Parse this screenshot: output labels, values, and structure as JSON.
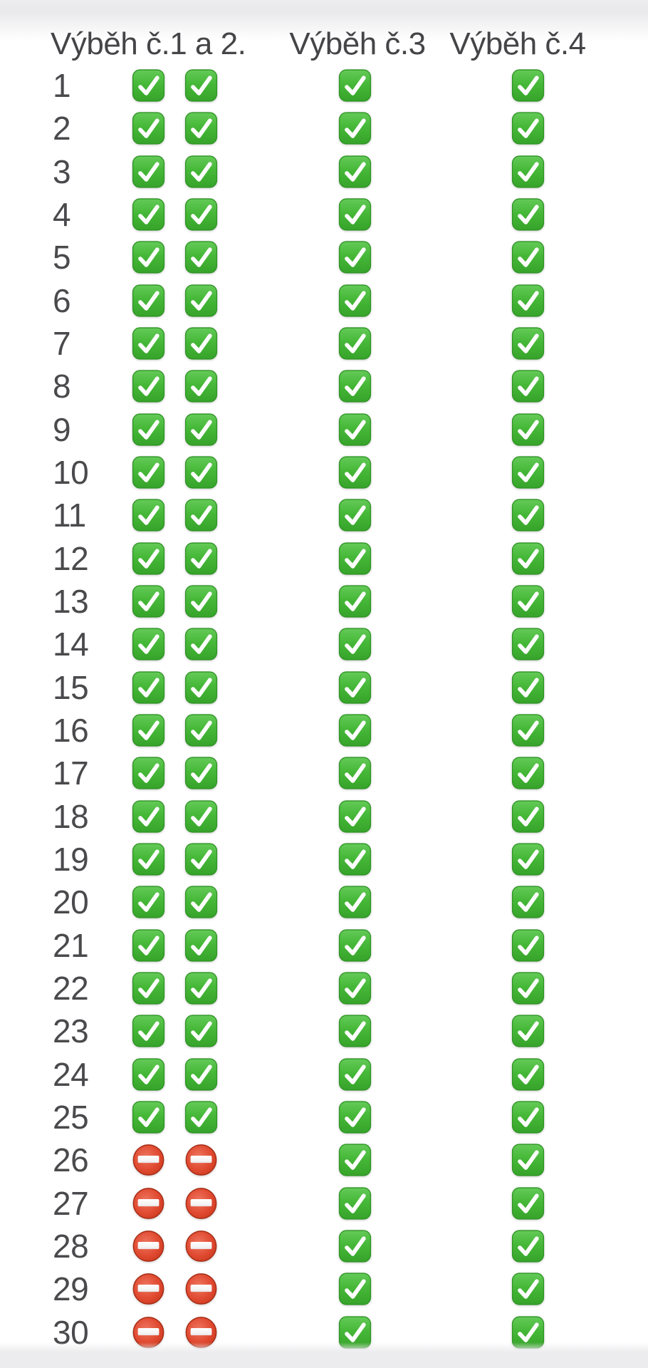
{
  "page": {
    "background": "#ffffff",
    "top_fade_color": "#e9e9eb",
    "bottom_band_color": "#ececee"
  },
  "colors": {
    "header_text": "#454548",
    "row_number_text": "#4a4a4d",
    "check_green_light": "#64ca58",
    "check_green": "#46b838",
    "check_green_dark": "#36a32a",
    "check_border": "#2e9424",
    "no_entry_red_light": "#ee7660",
    "no_entry_red": "#e04a31",
    "no_entry_red_dark": "#c43418",
    "no_entry_border": "#a82c15",
    "mark_white": "#ffffff"
  },
  "icon_legend": {
    "check": "green check mark button emoji",
    "no_entry": "red no-entry sign emoji"
  },
  "table": {
    "columns": [
      {
        "id": "pen-1-2",
        "label": "Výběh č.1 a 2."
      },
      {
        "id": "pen-3",
        "label": "Výběh č.3"
      },
      {
        "id": "pen-4",
        "label": "Výběh č.4"
      }
    ],
    "rows": [
      {
        "number": "1",
        "pen_1_2": [
          "check",
          "check"
        ],
        "pen_3": "check",
        "pen_4": "check"
      },
      {
        "number": "2",
        "pen_1_2": [
          "check",
          "check"
        ],
        "pen_3": "check",
        "pen_4": "check"
      },
      {
        "number": "3",
        "pen_1_2": [
          "check",
          "check"
        ],
        "pen_3": "check",
        "pen_4": "check"
      },
      {
        "number": "4",
        "pen_1_2": [
          "check",
          "check"
        ],
        "pen_3": "check",
        "pen_4": "check"
      },
      {
        "number": "5",
        "pen_1_2": [
          "check",
          "check"
        ],
        "pen_3": "check",
        "pen_4": "check"
      },
      {
        "number": "6",
        "pen_1_2": [
          "check",
          "check"
        ],
        "pen_3": "check",
        "pen_4": "check"
      },
      {
        "number": "7",
        "pen_1_2": [
          "check",
          "check"
        ],
        "pen_3": "check",
        "pen_4": "check"
      },
      {
        "number": "8",
        "pen_1_2": [
          "check",
          "check"
        ],
        "pen_3": "check",
        "pen_4": "check"
      },
      {
        "number": "9",
        "pen_1_2": [
          "check",
          "check"
        ],
        "pen_3": "check",
        "pen_4": "check"
      },
      {
        "number": "10",
        "pen_1_2": [
          "check",
          "check"
        ],
        "pen_3": "check",
        "pen_4": "check"
      },
      {
        "number": "11",
        "pen_1_2": [
          "check",
          "check"
        ],
        "pen_3": "check",
        "pen_4": "check"
      },
      {
        "number": "12",
        "pen_1_2": [
          "check",
          "check"
        ],
        "pen_3": "check",
        "pen_4": "check"
      },
      {
        "number": "13",
        "pen_1_2": [
          "check",
          "check"
        ],
        "pen_3": "check",
        "pen_4": "check"
      },
      {
        "number": "14",
        "pen_1_2": [
          "check",
          "check"
        ],
        "pen_3": "check",
        "pen_4": "check"
      },
      {
        "number": "15",
        "pen_1_2": [
          "check",
          "check"
        ],
        "pen_3": "check",
        "pen_4": "check"
      },
      {
        "number": "16",
        "pen_1_2": [
          "check",
          "check"
        ],
        "pen_3": "check",
        "pen_4": "check"
      },
      {
        "number": "17",
        "pen_1_2": [
          "check",
          "check"
        ],
        "pen_3": "check",
        "pen_4": "check"
      },
      {
        "number": "18",
        "pen_1_2": [
          "check",
          "check"
        ],
        "pen_3": "check",
        "pen_4": "check"
      },
      {
        "number": "19",
        "pen_1_2": [
          "check",
          "check"
        ],
        "pen_3": "check",
        "pen_4": "check"
      },
      {
        "number": "20",
        "pen_1_2": [
          "check",
          "check"
        ],
        "pen_3": "check",
        "pen_4": "check"
      },
      {
        "number": "21",
        "pen_1_2": [
          "check",
          "check"
        ],
        "pen_3": "check",
        "pen_4": "check"
      },
      {
        "number": "22",
        "pen_1_2": [
          "check",
          "check"
        ],
        "pen_3": "check",
        "pen_4": "check"
      },
      {
        "number": "23",
        "pen_1_2": [
          "check",
          "check"
        ],
        "pen_3": "check",
        "pen_4": "check"
      },
      {
        "number": "24",
        "pen_1_2": [
          "check",
          "check"
        ],
        "pen_3": "check",
        "pen_4": "check"
      },
      {
        "number": "25",
        "pen_1_2": [
          "check",
          "check"
        ],
        "pen_3": "check",
        "pen_4": "check"
      },
      {
        "number": "26",
        "pen_1_2": [
          "no_entry",
          "no_entry"
        ],
        "pen_3": "check",
        "pen_4": "check"
      },
      {
        "number": "27",
        "pen_1_2": [
          "no_entry",
          "no_entry"
        ],
        "pen_3": "check",
        "pen_4": "check"
      },
      {
        "number": "28",
        "pen_1_2": [
          "no_entry",
          "no_entry"
        ],
        "pen_3": "check",
        "pen_4": "check"
      },
      {
        "number": "29",
        "pen_1_2": [
          "no_entry",
          "no_entry"
        ],
        "pen_3": "check",
        "pen_4": "check"
      },
      {
        "number": "30",
        "pen_1_2": [
          "no_entry",
          "no_entry"
        ],
        "pen_3": "check",
        "pen_4": "check"
      }
    ]
  }
}
